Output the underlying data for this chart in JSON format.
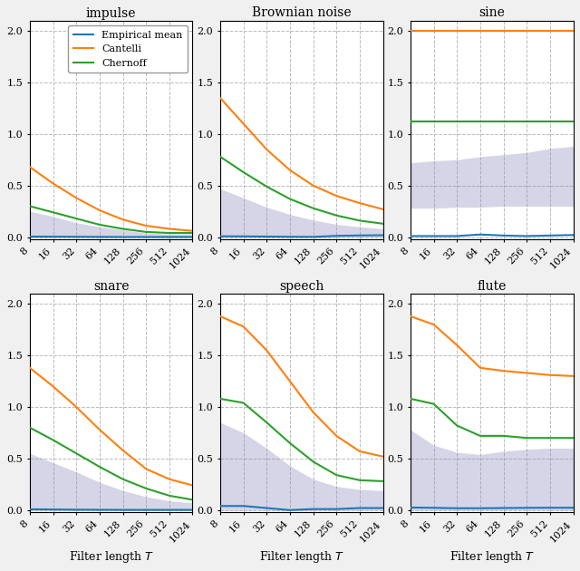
{
  "titles": [
    "impulse",
    "Brownian noise",
    "sine",
    "snare",
    "speech",
    "flute"
  ],
  "x_ticks": [
    8,
    16,
    32,
    64,
    128,
    256,
    512,
    1024
  ],
  "x_values": [
    8,
    16,
    32,
    64,
    128,
    256,
    512,
    1024
  ],
  "legend_labels": [
    "Empirical mean",
    "Cantelli",
    "Chernoff"
  ],
  "colors": {
    "empirical": "#1f77b4",
    "cantelli": "#ff7f0e",
    "chernoff": "#2ca02c",
    "shade": "#8888bb"
  },
  "subplot_data": {
    "impulse": {
      "cantelli": [
        0.68,
        0.52,
        0.38,
        0.26,
        0.17,
        0.11,
        0.08,
        0.06
      ],
      "chernoff": [
        0.3,
        0.24,
        0.18,
        0.12,
        0.08,
        0.05,
        0.04,
        0.04
      ],
      "empirical": [
        0.005,
        0.004,
        0.003,
        0.002,
        0.001,
        0.001,
        0.001,
        0.001
      ],
      "shade_top": [
        0.25,
        0.2,
        0.14,
        0.1,
        0.07,
        0.04,
        0.03,
        0.03
      ],
      "shade_bot": [
        0.0,
        0.0,
        0.0,
        0.0,
        0.0,
        0.0,
        0.0,
        0.0
      ]
    },
    "Brownian noise": {
      "cantelli": [
        1.35,
        1.1,
        0.85,
        0.65,
        0.5,
        0.4,
        0.33,
        0.27
      ],
      "chernoff": [
        0.78,
        0.63,
        0.49,
        0.37,
        0.28,
        0.21,
        0.16,
        0.13
      ],
      "empirical": [
        0.008,
        0.007,
        0.005,
        0.003,
        0.002,
        0.012,
        0.016,
        0.018
      ],
      "shade_top": [
        0.47,
        0.38,
        0.29,
        0.22,
        0.165,
        0.125,
        0.1,
        0.08
      ],
      "shade_bot": [
        0.0,
        0.0,
        0.0,
        0.0,
        0.0,
        0.0,
        0.0,
        0.0
      ]
    },
    "sine": {
      "cantelli": [
        2.0,
        2.0,
        2.0,
        2.0,
        2.0,
        2.0,
        2.0,
        2.0
      ],
      "chernoff": [
        1.12,
        1.12,
        1.12,
        1.12,
        1.12,
        1.12,
        1.12,
        1.12
      ],
      "empirical": [
        0.01,
        0.01,
        0.01,
        0.025,
        0.015,
        0.01,
        0.015,
        0.02
      ],
      "shade_top": [
        0.72,
        0.74,
        0.75,
        0.78,
        0.8,
        0.82,
        0.86,
        0.88
      ],
      "shade_bot": [
        0.28,
        0.28,
        0.29,
        0.29,
        0.3,
        0.3,
        0.3,
        0.3
      ]
    },
    "snare": {
      "cantelli": [
        1.38,
        1.2,
        1.0,
        0.78,
        0.58,
        0.4,
        0.3,
        0.24
      ],
      "chernoff": [
        0.8,
        0.68,
        0.55,
        0.42,
        0.3,
        0.21,
        0.14,
        0.1
      ],
      "empirical": [
        0.008,
        0.006,
        0.004,
        0.003,
        0.002,
        0.002,
        0.002,
        0.002
      ],
      "shade_top": [
        0.55,
        0.46,
        0.37,
        0.27,
        0.19,
        0.13,
        0.09,
        0.07
      ],
      "shade_bot": [
        0.0,
        0.0,
        0.0,
        0.0,
        0.0,
        0.0,
        0.0,
        0.0
      ]
    },
    "speech": {
      "cantelli": [
        1.88,
        1.78,
        1.55,
        1.25,
        0.95,
        0.72,
        0.57,
        0.52
      ],
      "chernoff": [
        1.08,
        1.04,
        0.85,
        0.65,
        0.47,
        0.34,
        0.29,
        0.28
      ],
      "empirical": [
        0.04,
        0.04,
        0.02,
        0.0,
        0.01,
        0.01,
        0.02,
        0.02
      ],
      "shade_top": [
        0.85,
        0.75,
        0.6,
        0.43,
        0.3,
        0.23,
        0.2,
        0.19
      ],
      "shade_bot": [
        0.0,
        0.0,
        0.0,
        0.0,
        0.0,
        0.0,
        0.0,
        0.0
      ]
    },
    "flute": {
      "cantelli": [
        1.88,
        1.8,
        1.6,
        1.38,
        1.35,
        1.33,
        1.31,
        1.3
      ],
      "chernoff": [
        1.08,
        1.03,
        0.82,
        0.72,
        0.72,
        0.7,
        0.7,
        0.7
      ],
      "empirical": [
        0.025,
        0.022,
        0.018,
        0.018,
        0.02,
        0.022,
        0.023,
        0.023
      ],
      "shade_top": [
        0.78,
        0.63,
        0.56,
        0.54,
        0.57,
        0.59,
        0.6,
        0.6
      ],
      "shade_bot": [
        0.0,
        0.0,
        0.0,
        0.0,
        0.0,
        0.0,
        0.0,
        0.0
      ]
    }
  },
  "ylim": [
    -0.02,
    2.1
  ],
  "yticks": [
    0.0,
    0.5,
    1.0,
    1.5,
    2.0
  ],
  "xlabel_bottom": "Filter length $T$",
  "figsize": [
    6.4,
    6.3
  ],
  "dpi": 100,
  "fig_facecolor": "#f0f0f0",
  "ax_facecolor": "#ffffff"
}
